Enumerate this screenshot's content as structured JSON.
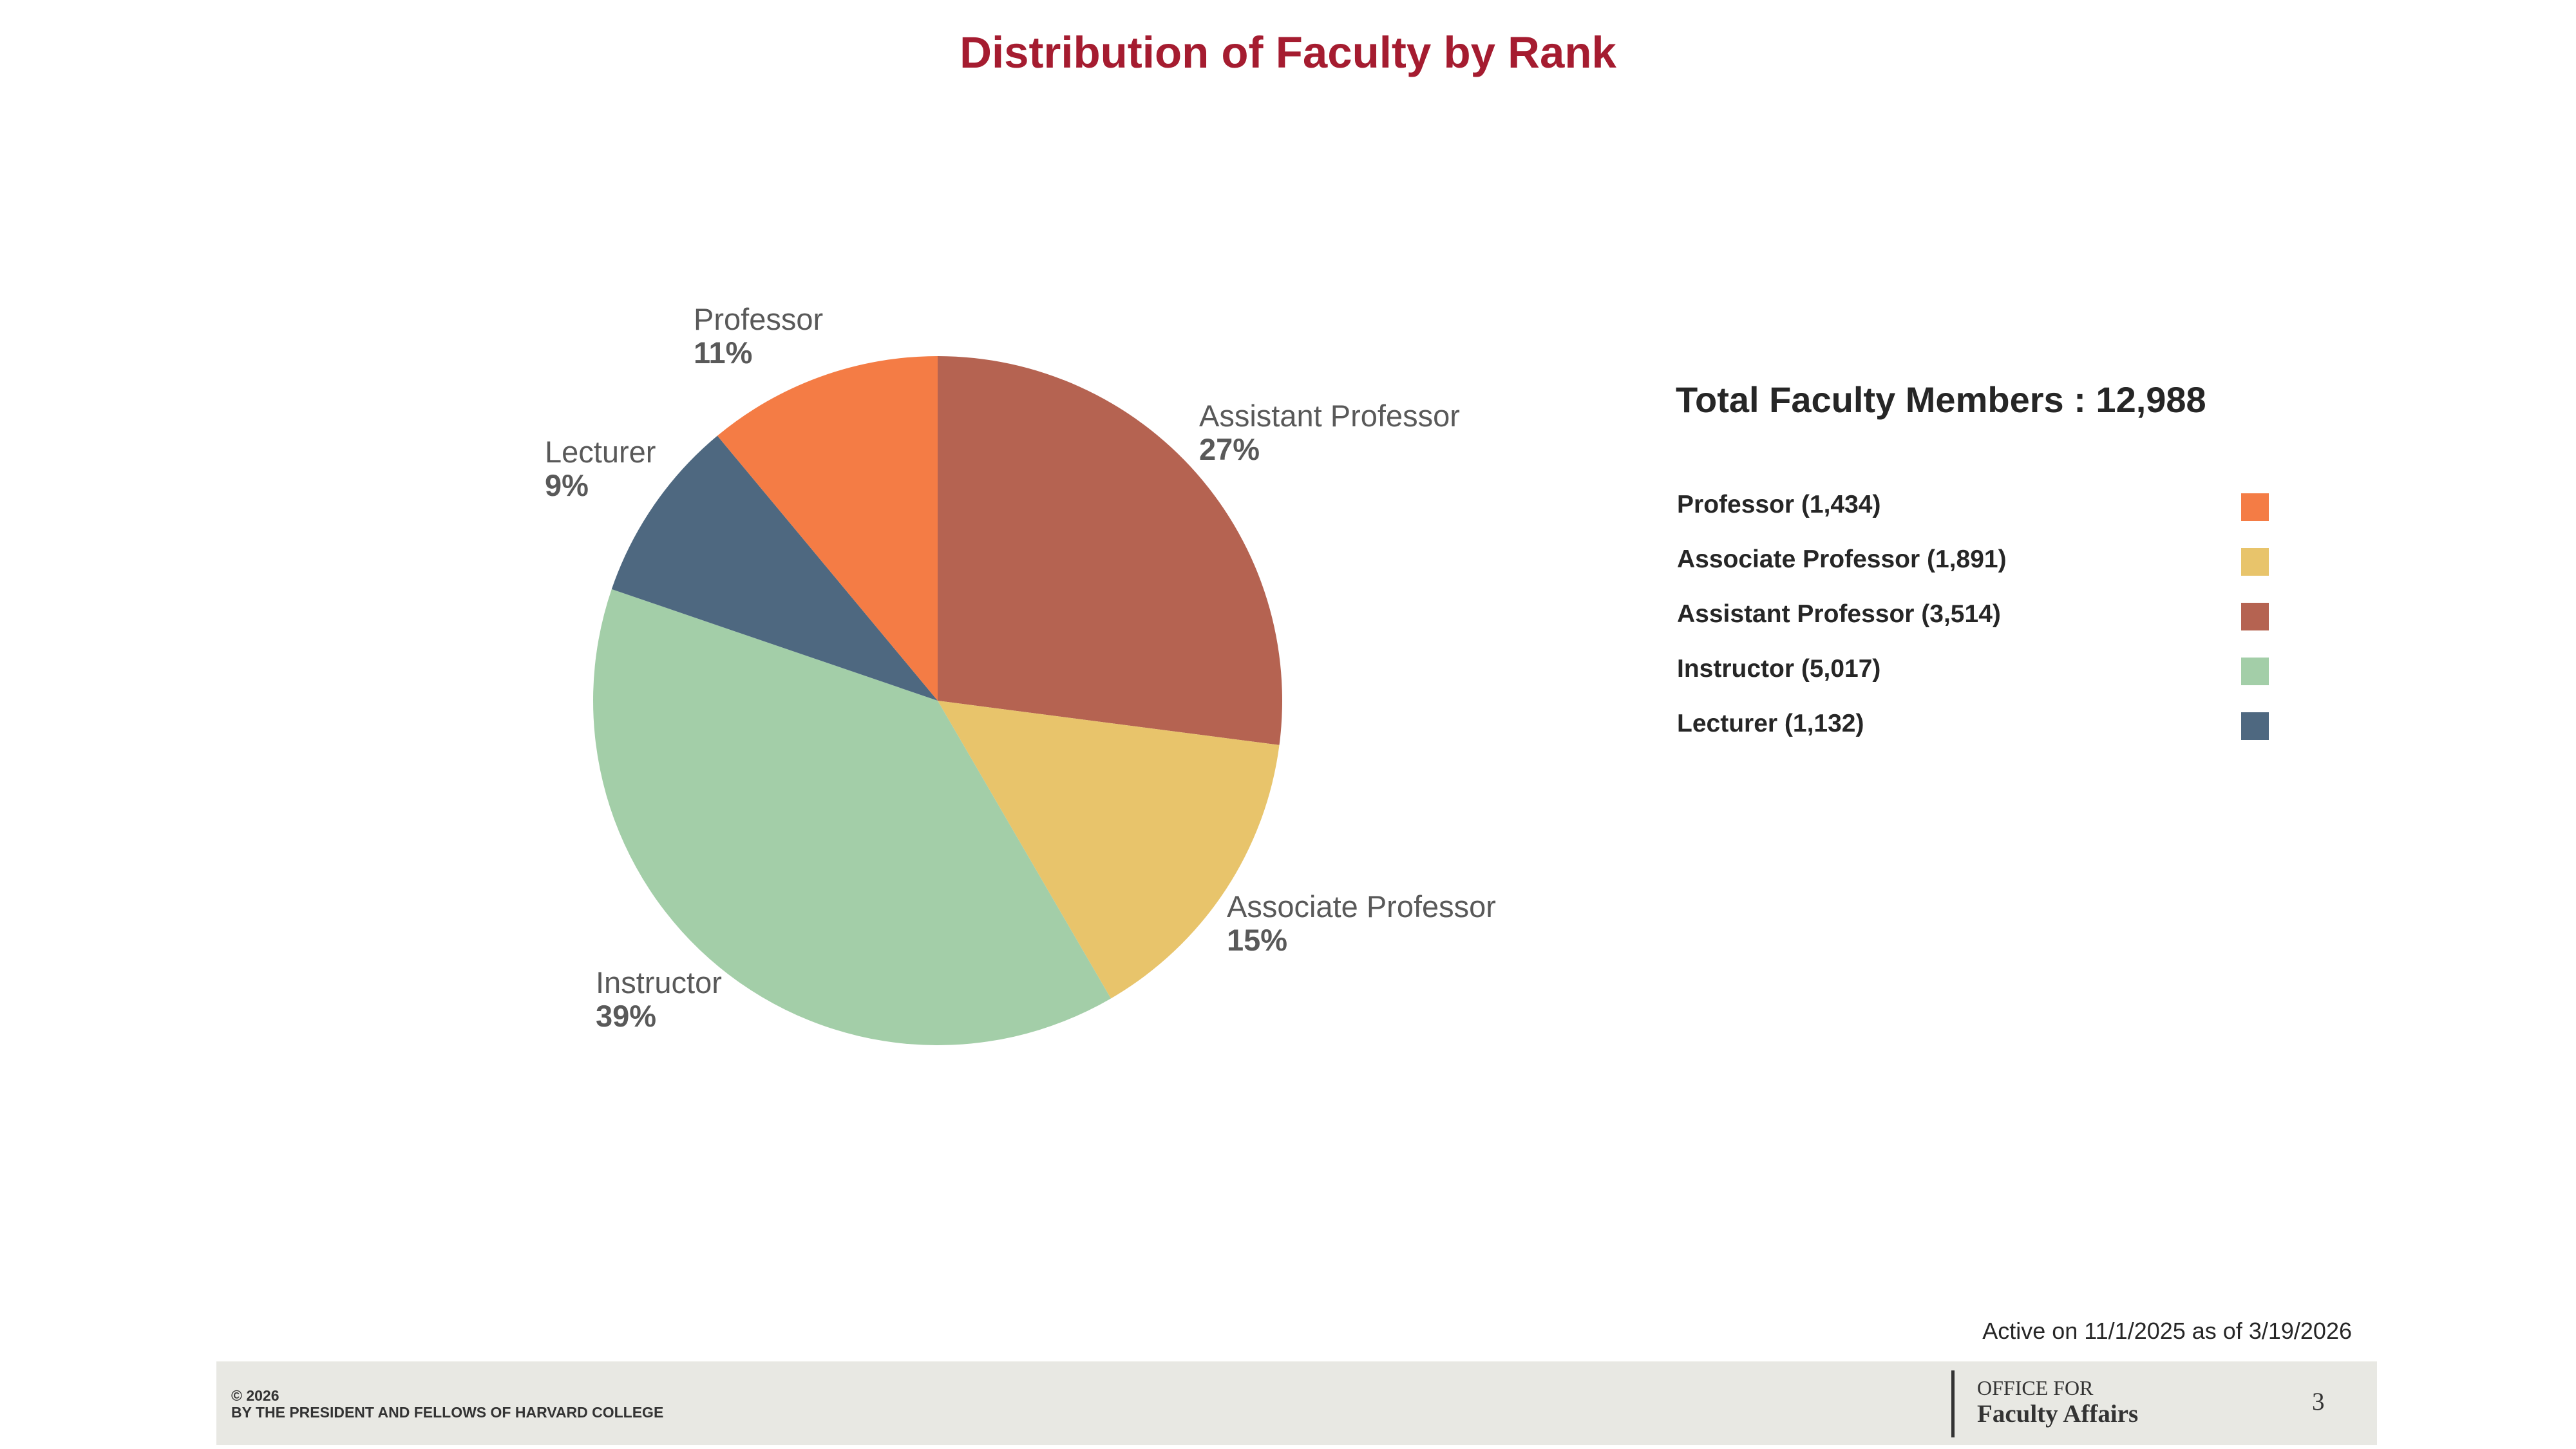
{
  "title": "Distribution of Faculty by Rank",
  "chart_data": {
    "type": "pie",
    "title": "Distribution of Faculty by Rank",
    "slices": [
      {
        "label": "Assistant Professor",
        "value": 3514,
        "percent_label": "27%",
        "color": "#B56351"
      },
      {
        "label": "Associate Professor",
        "value": 1891,
        "percent_label": "15%",
        "color": "#E8C46B"
      },
      {
        "label": "Instructor",
        "value": 5017,
        "percent_label": "39%",
        "color": "#A3CEA8"
      },
      {
        "label": "Lecturer",
        "value": 1132,
        "percent_label": "9%",
        "color": "#4E6880"
      },
      {
        "label": "Professor",
        "value": 1434,
        "percent_label": "11%",
        "color": "#F47C45"
      }
    ],
    "legend": {
      "position": "right",
      "items": [
        {
          "label": "Professor (1,434)",
          "color": "#F47C45"
        },
        {
          "label": "Associate Professor (1,891)",
          "color": "#E8C46B"
        },
        {
          "label": "Assistant Professor (3,514)",
          "color": "#B56351"
        },
        {
          "label": "Instructor (5,017)",
          "color": "#A3CEA8"
        },
        {
          "label": "Lecturer (1,132)",
          "color": "#4E6880"
        }
      ]
    }
  },
  "total_label": "Total Faculty Members : 12,988",
  "as_of": "Active on 11/1/2025 as of 3/19/2026",
  "footer": {
    "copyright_line1": "© 2026",
    "copyright_line2": "BY THE PRESIDENT AND FELLOWS OF HARVARD COLLEGE",
    "office_line1": "OFFICE FOR",
    "office_line2": "Faculty Affairs",
    "page_number": "3"
  }
}
